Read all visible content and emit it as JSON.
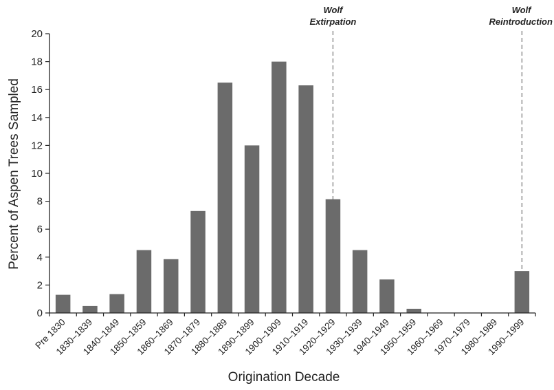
{
  "chart_data": {
    "type": "bar",
    "title": "",
    "xlabel": "Origination Decade",
    "ylabel": "Percent of Aspen Trees Sampled",
    "ylim": [
      0,
      20
    ],
    "yticks": [
      0,
      2,
      4,
      6,
      8,
      10,
      12,
      14,
      16,
      18,
      20
    ],
    "grid": false,
    "legend": "none",
    "categories": [
      "Pre 1830",
      "1830–1839",
      "1840–1849",
      "1850–1859",
      "1860–1869",
      "1870–1879",
      "1880–1889",
      "1890–1899",
      "1900–1909",
      "1910–1919",
      "1920–1929",
      "1930–1939",
      "1940–1949",
      "1950–1959",
      "1960–1969",
      "1970–1979",
      "1980–1989",
      "1990–1999"
    ],
    "values": [
      1.3,
      0.5,
      1.35,
      4.5,
      3.85,
      7.3,
      16.5,
      12.0,
      18.0,
      16.3,
      8.15,
      4.5,
      2.4,
      0.3,
      0,
      0,
      0,
      3.0
    ],
    "bar_color": "#6b6b6b",
    "annotations": [
      {
        "category": "1920–1929",
        "line1": "Wolf",
        "line2": "Extirpation",
        "style": "dashed-vertical-line"
      },
      {
        "category": "1990–1999",
        "line1": "Wolf",
        "line2": "Reintroduction",
        "style": "dashed-vertical-line"
      }
    ]
  }
}
